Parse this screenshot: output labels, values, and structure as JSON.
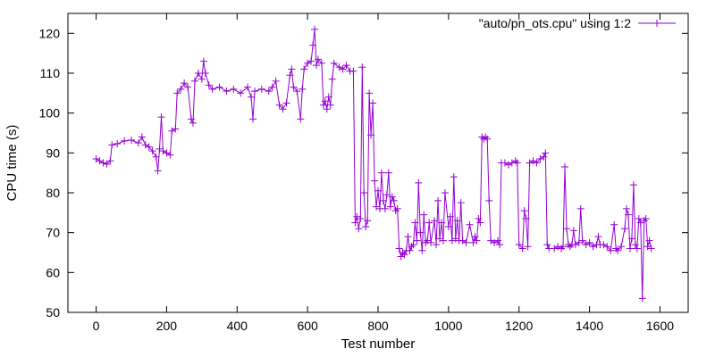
{
  "chart_data": {
    "type": "line",
    "title": "",
    "xlabel": "Test number",
    "ylabel": "CPU time (s)",
    "xlim": [
      -80,
      1680
    ],
    "ylim": [
      50,
      125
    ],
    "xticks": [
      0,
      200,
      400,
      600,
      800,
      1000,
      1200,
      1400,
      1600
    ],
    "yticks": [
      50,
      60,
      70,
      80,
      90,
      100,
      110,
      120
    ],
    "grid": false,
    "legend_position": "top-right",
    "series": [
      {
        "name": "\"auto/pn_ots.cpu\" using 1:2",
        "color": "#9400d3",
        "marker": "plus",
        "points": [
          [
            0,
            88.5
          ],
          [
            10,
            88.0
          ],
          [
            20,
            87.5
          ],
          [
            30,
            87.2
          ],
          [
            40,
            88.0
          ],
          [
            45,
            92.0
          ],
          [
            60,
            92.3
          ],
          [
            80,
            93.0
          ],
          [
            100,
            93.2
          ],
          [
            120,
            92.5
          ],
          [
            130,
            94.0
          ],
          [
            140,
            92.0
          ],
          [
            150,
            91.5
          ],
          [
            160,
            90.5
          ],
          [
            170,
            89.0
          ],
          [
            175,
            85.5
          ],
          [
            180,
            91.0
          ],
          [
            185,
            99.0
          ],
          [
            190,
            90.5
          ],
          [
            200,
            90.0
          ],
          [
            210,
            89.5
          ],
          [
            215,
            95.5
          ],
          [
            225,
            96.0
          ],
          [
            230,
            105.0
          ],
          [
            240,
            106.0
          ],
          [
            250,
            107.5
          ],
          [
            260,
            106.5
          ],
          [
            270,
            98.5
          ],
          [
            275,
            97.5
          ],
          [
            280,
            108.0
          ],
          [
            290,
            110.0
          ],
          [
            300,
            108.5
          ],
          [
            305,
            113.0
          ],
          [
            310,
            110.0
          ],
          [
            320,
            107.0
          ],
          [
            330,
            106.0
          ],
          [
            350,
            106.5
          ],
          [
            370,
            105.5
          ],
          [
            390,
            106.0
          ],
          [
            410,
            105.0
          ],
          [
            430,
            106.5
          ],
          [
            440,
            104.0
          ],
          [
            445,
            98.5
          ],
          [
            450,
            105.5
          ],
          [
            470,
            106.0
          ],
          [
            490,
            105.5
          ],
          [
            500,
            106.5
          ],
          [
            510,
            108.0
          ],
          [
            520,
            102.0
          ],
          [
            530,
            101.0
          ],
          [
            540,
            102.5
          ],
          [
            550,
            109.5
          ],
          [
            555,
            111.0
          ],
          [
            560,
            106.5
          ],
          [
            570,
            105.5
          ],
          [
            580,
            98.5
          ],
          [
            585,
            106.0
          ],
          [
            590,
            111.0
          ],
          [
            600,
            112.5
          ],
          [
            610,
            113.0
          ],
          [
            615,
            117.0
          ],
          [
            620,
            121.0
          ],
          [
            625,
            112.0
          ],
          [
            630,
            113.5
          ],
          [
            640,
            112.5
          ],
          [
            645,
            102.0
          ],
          [
            650,
            103.0
          ],
          [
            655,
            101.0
          ],
          [
            660,
            104.0
          ],
          [
            665,
            102.0
          ],
          [
            670,
            108.5
          ],
          [
            675,
            112.5
          ],
          [
            690,
            111.5
          ],
          [
            700,
            111.0
          ],
          [
            710,
            112.0
          ],
          [
            720,
            110.5
          ],
          [
            730,
            110.5
          ],
          [
            735,
            72.5
          ],
          [
            740,
            74.0
          ],
          [
            745,
            71.0
          ],
          [
            750,
            73.5
          ],
          [
            755,
            111.5
          ],
          [
            760,
            80.0
          ],
          [
            765,
            71.5
          ],
          [
            770,
            73.0
          ],
          [
            775,
            105.0
          ],
          [
            780,
            94.5
          ],
          [
            785,
            102.5
          ],
          [
            790,
            83.0
          ],
          [
            795,
            76.5
          ],
          [
            800,
            80.5
          ],
          [
            805,
            76.0
          ],
          [
            810,
            85.0
          ],
          [
            815,
            78.0
          ],
          [
            820,
            76.0
          ],
          [
            825,
            79.5
          ],
          [
            830,
            85.0
          ],
          [
            835,
            76.5
          ],
          [
            840,
            79.0
          ],
          [
            845,
            78.0
          ],
          [
            850,
            75.5
          ],
          [
            855,
            76.0
          ],
          [
            860,
            66.0
          ],
          [
            865,
            64.0
          ],
          [
            870,
            65.0
          ],
          [
            875,
            64.5
          ],
          [
            880,
            65.5
          ],
          [
            885,
            69.0
          ],
          [
            890,
            65.5
          ],
          [
            895,
            66.5
          ],
          [
            900,
            67.0
          ],
          [
            905,
            72.5
          ],
          [
            910,
            68.0
          ],
          [
            915,
            82.5
          ],
          [
            920,
            70.0
          ],
          [
            925,
            65.5
          ],
          [
            930,
            74.5
          ],
          [
            935,
            67.5
          ],
          [
            940,
            68.0
          ],
          [
            945,
            72.5
          ],
          [
            950,
            67.5
          ],
          [
            960,
            73.0
          ],
          [
            965,
            67.0
          ],
          [
            970,
            78.0
          ],
          [
            975,
            68.5
          ],
          [
            980,
            72.5
          ],
          [
            985,
            68.0
          ],
          [
            990,
            80.0
          ],
          [
            1000,
            71.5
          ],
          [
            1005,
            74.0
          ],
          [
            1010,
            68.0
          ],
          [
            1015,
            84.0
          ],
          [
            1020,
            68.5
          ],
          [
            1025,
            73.0
          ],
          [
            1030,
            68.0
          ],
          [
            1035,
            77.5
          ],
          [
            1040,
            68.0
          ],
          [
            1050,
            67.5
          ],
          [
            1060,
            72.0
          ],
          [
            1070,
            67.5
          ],
          [
            1075,
            69.0
          ],
          [
            1080,
            68.0
          ],
          [
            1085,
            73.5
          ],
          [
            1090,
            72.5
          ],
          [
            1095,
            94.0
          ],
          [
            1100,
            93.5
          ],
          [
            1105,
            94.0
          ],
          [
            1110,
            93.5
          ],
          [
            1115,
            78.0
          ],
          [
            1120,
            68.0
          ],
          [
            1130,
            67.5
          ],
          [
            1140,
            68.0
          ],
          [
            1145,
            67.0
          ],
          [
            1150,
            87.5
          ],
          [
            1160,
            87.5
          ],
          [
            1170,
            87.0
          ],
          [
            1180,
            87.5
          ],
          [
            1190,
            88.0
          ],
          [
            1195,
            87.5
          ],
          [
            1200,
            67.0
          ],
          [
            1210,
            66.0
          ],
          [
            1215,
            75.5
          ],
          [
            1220,
            73.5
          ],
          [
            1225,
            66.5
          ],
          [
            1230,
            87.5
          ],
          [
            1240,
            88.0
          ],
          [
            1250,
            87.5
          ],
          [
            1260,
            88.5
          ],
          [
            1270,
            89.0
          ],
          [
            1275,
            90.0
          ],
          [
            1280,
            67.0
          ],
          [
            1285,
            66.0
          ],
          [
            1300,
            66.0
          ],
          [
            1310,
            66.5
          ],
          [
            1320,
            66.0
          ],
          [
            1325,
            66.5
          ],
          [
            1330,
            86.5
          ],
          [
            1335,
            71.0
          ],
          [
            1340,
            67.0
          ],
          [
            1345,
            66.5
          ],
          [
            1350,
            67.0
          ],
          [
            1355,
            70.5
          ],
          [
            1360,
            67.0
          ],
          [
            1370,
            67.5
          ],
          [
            1375,
            76.0
          ],
          [
            1380,
            68.0
          ],
          [
            1390,
            67.0
          ],
          [
            1400,
            67.5
          ],
          [
            1410,
            66.5
          ],
          [
            1420,
            67.0
          ],
          [
            1425,
            69.0
          ],
          [
            1430,
            67.0
          ],
          [
            1440,
            67.0
          ],
          [
            1450,
            66.5
          ],
          [
            1460,
            65.5
          ],
          [
            1470,
            72.0
          ],
          [
            1475,
            66.0
          ],
          [
            1480,
            65.5
          ],
          [
            1490,
            66.5
          ],
          [
            1500,
            71.0
          ],
          [
            1505,
            76.0
          ],
          [
            1510,
            74.5
          ],
          [
            1515,
            66.0
          ],
          [
            1520,
            68.5
          ],
          [
            1525,
            82.0
          ],
          [
            1530,
            67.0
          ],
          [
            1535,
            66.0
          ],
          [
            1540,
            73.5
          ],
          [
            1545,
            72.5
          ],
          [
            1550,
            53.5
          ],
          [
            1555,
            73.0
          ],
          [
            1560,
            73.5
          ],
          [
            1565,
            66.5
          ],
          [
            1570,
            68.0
          ],
          [
            1575,
            66.0
          ]
        ]
      }
    ]
  }
}
